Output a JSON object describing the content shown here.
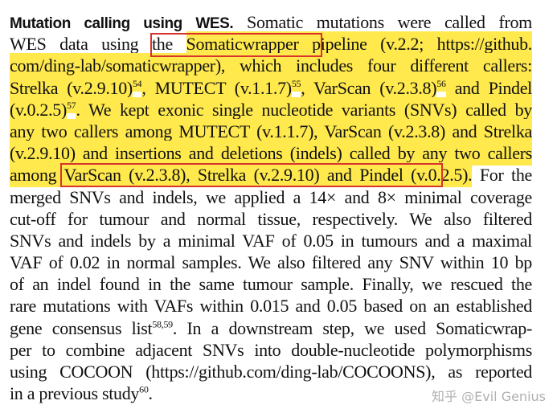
{
  "colors": {
    "highlight": "#ffe94d",
    "box": "#d9342b",
    "text": "#111111"
  },
  "watermark": "知乎 @Evil Genius",
  "lines": [
    [
      {
        "t": "Mutation calling using WES.",
        "bold": true
      },
      {
        "t": " Somatic mutations were called from"
      }
    ],
    [
      {
        "t": "WES data using the "
      },
      {
        "t": "Somaticwrapper pipeline (v.2.2; https://github.",
        "hl": true
      }
    ],
    [
      {
        "t": "com/ding-lab/somaticwrapper), which includes four different callers:",
        "hl": true
      }
    ],
    [
      {
        "t": "Strelka (v.2.9.10)",
        "hl": true
      },
      {
        "t": "54",
        "hl": true,
        "sup": true
      },
      {
        "t": ", MUTECT (v.1.1.7)",
        "hl": true
      },
      {
        "t": "55",
        "hl": true,
        "sup": true
      },
      {
        "t": ", VarScan (v.2.3.8)",
        "hl": true
      },
      {
        "t": "56",
        "hl": true,
        "sup": true
      },
      {
        "t": " and Pindel",
        "hl": true
      }
    ],
    [
      {
        "t": "(v.0.2.5)",
        "hl": true
      },
      {
        "t": "57",
        "hl": true,
        "sup": true
      },
      {
        "t": ". We kept exonic single nucleotide variants (SNVs) called by",
        "hl": true
      }
    ],
    [
      {
        "t": "any two callers among MUTECT (v.1.1.7), VarScan (v.2.3.8) and Strelka",
        "hl": true
      }
    ],
    [
      {
        "t": "(v.2.9.10) and insertions and deletions (indels) called by any two callers",
        "hl": true
      }
    ],
    [
      {
        "t": "among VarScan (v.2.3.8), Strelka (v.2.9.10) and Pindel (v.0.2.5).",
        "hl": true
      },
      {
        "t": " For the"
      }
    ],
    [
      {
        "t": "merged SNVs and indels, we applied a 14× and 8× minimal coverage"
      }
    ],
    [
      {
        "t": "cut-off for tumour and normal tissue, respectively. We also filtered"
      }
    ],
    [
      {
        "t": "SNVs and indels by a minimal VAF of 0.05 in tumours and a maximal"
      }
    ],
    [
      {
        "t": "VAF of 0.02 in normal samples. We also filtered any SNV within 10 bp"
      }
    ],
    [
      {
        "t": "of an indel found in the same tumour sample. Finally, we rescued the"
      }
    ],
    [
      {
        "t": "rare mutations with VAFs within 0.015 and 0.05 based on an established"
      }
    ],
    [
      {
        "t": "gene consensus list"
      },
      {
        "t": "58,59",
        "sup": true
      },
      {
        "t": ". In a downstream step, we used Somaticwrap-"
      }
    ],
    [
      {
        "t": "per to combine adjacent SNVs into double-nucleotide polymorphisms"
      }
    ],
    [
      {
        "t": "using COCOON (https://github.com/ding-lab/COCOONS), as reported"
      }
    ],
    [
      {
        "t": "in a previous study"
      },
      {
        "t": "60",
        "sup": true
      },
      {
        "t": "."
      }
    ]
  ]
}
